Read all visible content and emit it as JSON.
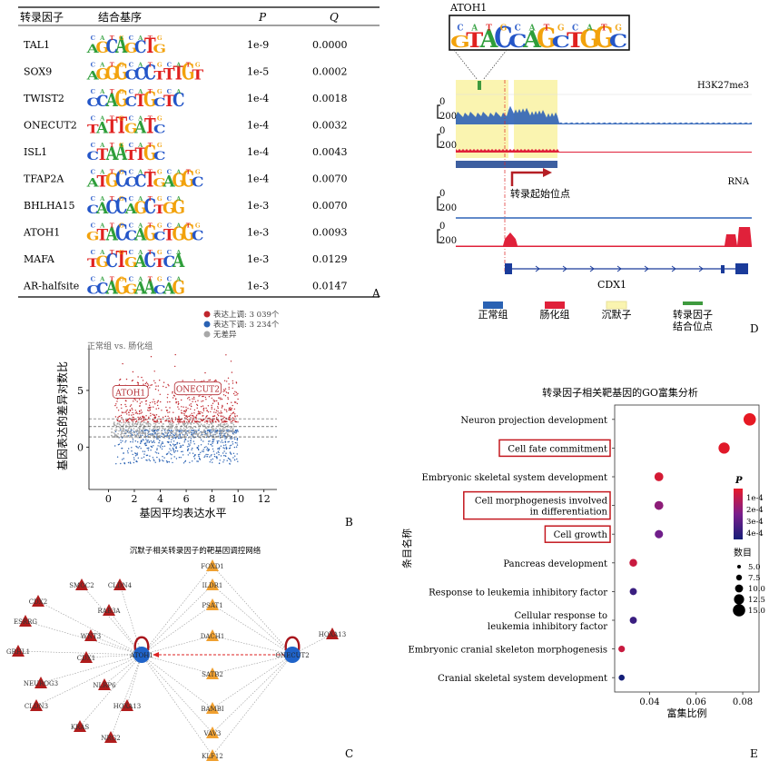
{
  "panelA": {
    "letter": "A",
    "headers": [
      "转录因子",
      "结合基序",
      "P",
      "Q"
    ],
    "rows": [
      {
        "tf": "TAL1",
        "motif": "AGCAGCTG",
        "p": "1e-9",
        "q": "0.0000"
      },
      {
        "tf": "SOX9",
        "motif": "AGGGCCCTTTGT",
        "p": "1e-5",
        "q": "0.0002"
      },
      {
        "tf": "TWIST2",
        "motif": "CCAGCTGCTC",
        "p": "1e-4",
        "q": "0.0018"
      },
      {
        "tf": "ONECUT2",
        "motif": "TATTGATC",
        "p": "1e-4",
        "q": "0.0032"
      },
      {
        "tf": "ISL1",
        "motif": "CTAATTGC",
        "p": "1e-4",
        "q": "0.0043"
      },
      {
        "tf": "TFAP2A",
        "motif": "ATGCCCTGAGGC",
        "p": "1e-4",
        "q": "0.0070"
      },
      {
        "tf": "BHLHA15",
        "motif": "CACCAGCTGG",
        "p": "1e-3",
        "q": "0.0070"
      },
      {
        "tf": "ATOH1",
        "motif": "GTACCAGCTGGC",
        "p": "1e-3",
        "q": "0.0093"
      },
      {
        "tf": "MAFA",
        "motif": "TGCTGACTCA",
        "p": "1e-3",
        "q": "0.0129"
      },
      {
        "tf": "AR-halfsite",
        "motif": "CCAGGAACAG",
        "p": "1e-3",
        "q": "0.0147"
      }
    ]
  },
  "panelB": {
    "letter": "B",
    "legend": [
      "表达上调: 3 039个",
      "表达下调: 3 234个",
      "无差异"
    ],
    "subtitle": "正常组 vs. 肠化组",
    "xlabel": "基因平均表达水平",
    "ylabel": "基因表达的差异对数比",
    "xticks": [
      "0",
      "2",
      "4",
      "6",
      "8",
      "10",
      "12"
    ],
    "yticks": [
      "5",
      "0"
    ],
    "labels": [
      "ATOH1",
      "ONECUT2"
    ],
    "colors": {
      "up": "#c0262d",
      "down": "#2a62b3",
      "ns": "#a8a8a8"
    }
  },
  "panelC": {
    "letter": "C",
    "title": "沉默子相关转录因子的靶基因调控网络",
    "hubs": [
      "ATOH1",
      "ONECUT2"
    ],
    "left": [
      "SMOC2",
      "CDX2",
      "CLDN4",
      "CDH17",
      "RAB3A",
      "ESRRG",
      "WNT3",
      "GRHL1",
      "CDX1",
      "NEUROG3",
      "NLRP6",
      "CLDN3",
      "HOXA13",
      "KRAS",
      "NRG2"
    ],
    "mid": [
      "FOXD1",
      "ILDR1",
      "PSAT1",
      "DACH1",
      "SATB2",
      "BAMBI",
      "VAV3",
      "KLF12"
    ],
    "right": [
      "HOXA13"
    ]
  },
  "panelD": {
    "letter": "D",
    "motif_label": "ATOH1",
    "motif": "GTACCAGCTGGC",
    "tracks": [
      "H3K27me3",
      "RNA"
    ],
    "scale": [
      "0",
      "200"
    ],
    "tss_label": "转录起始位点",
    "gene": "CDX1",
    "legend": [
      "正常组",
      "肠化组",
      "沉默子",
      "转录因子\n结合位点"
    ],
    "colors": {
      "normal": "#2a62b3",
      "im": "#e0213a",
      "silencer": "#faf4b0",
      "tfbs": "#3e9a3e"
    }
  },
  "panelE": {
    "letter": "E",
    "title": "转录因子相关靶基因的GO富集分析",
    "xlabel": "富集比例",
    "ylabel": "条目名称",
    "xticks": [
      "0.04",
      "0.06",
      "0.08"
    ],
    "legend_p_title": "P",
    "legend_p": [
      "1e-4",
      "2e-4",
      "3e-4",
      "4e-4"
    ],
    "legend_n_title": "数目",
    "legend_n": [
      "5.0",
      "7.5",
      "10.0",
      "12.5",
      "15.0"
    ],
    "terms": [
      {
        "name": "Neuron projection development",
        "ratio": 0.083,
        "count": 15,
        "p": 5e-05,
        "boxed": false
      },
      {
        "name": "Cell fate commitment",
        "ratio": 0.072,
        "count": 13,
        "p": 6e-05,
        "boxed": true
      },
      {
        "name": "Embryonic skeletal system development",
        "ratio": 0.044,
        "count": 9,
        "p": 8e-05,
        "boxed": false
      },
      {
        "name": "Cell morphogenesis involved\nin differentiation",
        "ratio": 0.044,
        "count": 9,
        "p": 0.0002,
        "boxed": true
      },
      {
        "name": "Cell growth",
        "ratio": 0.044,
        "count": 8,
        "p": 0.00025,
        "boxed": true
      },
      {
        "name": "Pancreas development",
        "ratio": 0.033,
        "count": 7,
        "p": 0.0001,
        "boxed": false
      },
      {
        "name": "Response to leukemia inhibitory factor",
        "ratio": 0.033,
        "count": 6,
        "p": 0.00035,
        "boxed": false
      },
      {
        "name": "Cellular response to\nleukemia inhibitory factor",
        "ratio": 0.033,
        "count": 6,
        "p": 0.00035,
        "boxed": false
      },
      {
        "name": "Embryonic cranial skeleton morphogenesis",
        "ratio": 0.028,
        "count": 5,
        "p": 0.0001,
        "boxed": false
      },
      {
        "name": "Cranial skeletal system development",
        "ratio": 0.028,
        "count": 4,
        "p": 0.00042,
        "boxed": false
      }
    ]
  }
}
